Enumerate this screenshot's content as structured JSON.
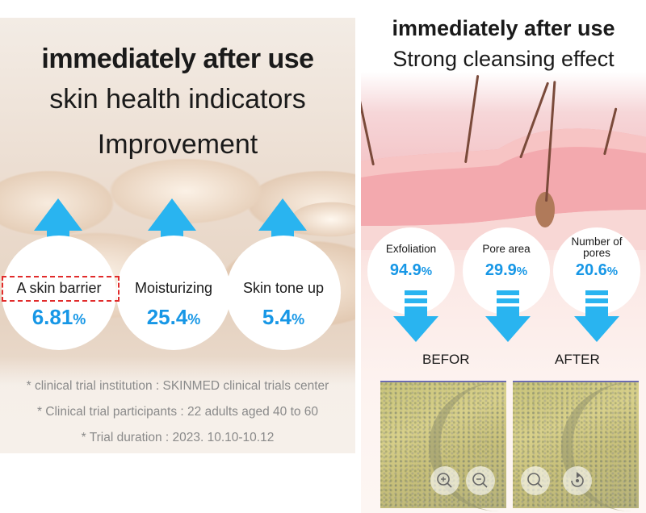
{
  "left_panel": {
    "headline": "immediately after use",
    "subtitle_line1": "skin health indicators",
    "subtitle_line2": "Improvement",
    "metrics": [
      {
        "label": "A skin barrier",
        "value": "6.81",
        "unit": "%"
      },
      {
        "label": "Moisturizing",
        "value": "25.4",
        "unit": "%"
      },
      {
        "label": "Skin tone up",
        "value": "5.4",
        "unit": "%"
      }
    ],
    "notes": [
      "* clinical trial institution : SKINMED clinical trials center",
      "* Clinical trial participants : 22 adults aged 40 to 60",
      "* Trial duration : 2023. 10.10-10.12"
    ]
  },
  "right_panel": {
    "headline": "immediately after use",
    "subtitle": "Strong cleansing effect",
    "metrics": [
      {
        "label_line1": "Exfoliation",
        "label_line2": "",
        "value": "94.9",
        "unit": "%"
      },
      {
        "label_line1": "Pore area",
        "label_line2": "",
        "value": "29.9",
        "unit": "%"
      },
      {
        "label_line1": "Number of",
        "label_line2": "pores",
        "value": "20.6",
        "unit": "%"
      }
    ],
    "before_label": "BEFOR",
    "after_label": "AFTER"
  },
  "colors": {
    "accent_blue": "#1797e6",
    "arrow_blue": "#29b4f0",
    "highlight_red": "#e12b2b"
  },
  "icons": [
    "arrow-up-icon",
    "arrow-down-icon",
    "zoom-in-icon",
    "zoom-out-icon",
    "search-icon",
    "rotate-icon"
  ]
}
